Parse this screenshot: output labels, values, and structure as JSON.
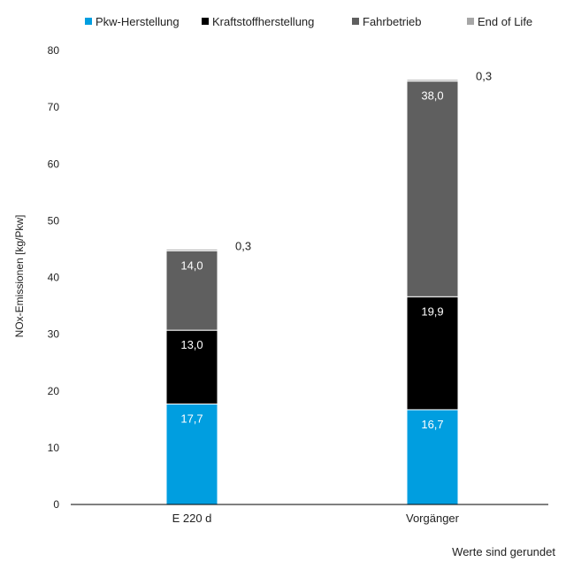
{
  "chart_data": {
    "type": "bar",
    "stacked": true,
    "categories": [
      "E 220 d",
      "Vorgänger"
    ],
    "series": [
      {
        "name": "Pkw-Herstellung",
        "color": "#009ee0",
        "values": [
          17.7,
          16.7
        ],
        "labels": [
          "17,7",
          "16,7"
        ]
      },
      {
        "name": "Kraftstoffherstellung",
        "color": "#000000",
        "values": [
          13.0,
          19.9
        ],
        "labels": [
          "13,0",
          "19,9"
        ]
      },
      {
        "name": "Fahrbetrieb",
        "color": "#5f5f5f",
        "values": [
          14.0,
          38.0
        ],
        "labels": [
          "14,0",
          "38,0"
        ]
      },
      {
        "name": "End of Life",
        "color": "#a6a6a6",
        "values": [
          0.3,
          0.3
        ],
        "labels": [
          "0,3",
          "0,3"
        ]
      }
    ],
    "ylabel": "NOx-Emissionen [kg/Pkw]",
    "ylim": [
      0,
      80
    ],
    "yticks": [
      0,
      10,
      20,
      30,
      40,
      50,
      60,
      70,
      80
    ],
    "legend_position": "top",
    "grid": false
  },
  "footnote": "Werte sind gerundet"
}
